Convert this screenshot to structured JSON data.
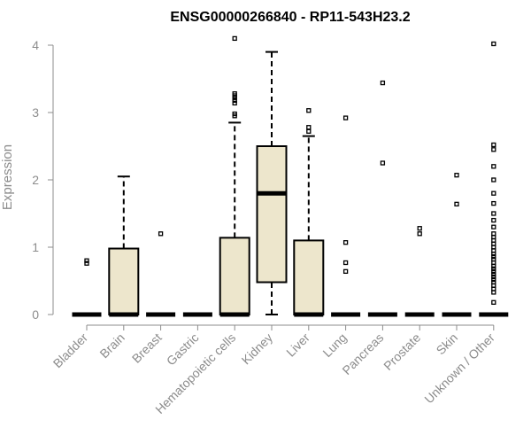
{
  "chart_data": {
    "type": "box",
    "title": "ENSG00000266840 - RP11-543H23.2",
    "xlabel": "",
    "ylabel": "Expression",
    "ylim": [
      0,
      4.2
    ],
    "y_ticks": [
      0,
      1,
      2,
      3,
      4
    ],
    "grid": false,
    "box_fill": "#ede6cc",
    "box_stroke": "#000000",
    "categories": [
      "Bladder",
      "Brain",
      "Breast",
      "Gastric",
      "Hematopoietic cells",
      "Kidney",
      "Liver",
      "Lung",
      "Pancreas",
      "Prostate",
      "Skin",
      "Unknown / Other"
    ],
    "boxes": [
      {
        "category": "Bladder",
        "whisker_low": 0,
        "q1": 0,
        "median": 0,
        "q3": 0,
        "whisker_high": 0,
        "outliers": [
          0.76,
          0.8
        ]
      },
      {
        "category": "Brain",
        "whisker_low": 0,
        "q1": 0,
        "median": 0,
        "q3": 0.98,
        "whisker_high": 2.05,
        "outliers": []
      },
      {
        "category": "Breast",
        "whisker_low": 0,
        "q1": 0,
        "median": 0,
        "q3": 0,
        "whisker_high": 0,
        "outliers": [
          1.2
        ]
      },
      {
        "category": "Gastric",
        "whisker_low": 0,
        "q1": 0,
        "median": 0,
        "q3": 0,
        "whisker_high": 0,
        "outliers": []
      },
      {
        "category": "Hematopoietic cells",
        "whisker_low": 0,
        "q1": 0,
        "median": 0,
        "q3": 1.14,
        "whisker_high": 2.85,
        "outliers": [
          2.95,
          2.98,
          3.14,
          3.18,
          3.22,
          3.25,
          3.28,
          4.1
        ]
      },
      {
        "category": "Kidney",
        "whisker_low": 0,
        "q1": 0.48,
        "median": 1.8,
        "q3": 2.5,
        "whisker_high": 3.9,
        "outliers": []
      },
      {
        "category": "Liver",
        "whisker_low": 0,
        "q1": 0,
        "median": 0,
        "q3": 1.1,
        "whisker_high": 2.65,
        "outliers": [
          2.72,
          2.78,
          3.03
        ]
      },
      {
        "category": "Lung",
        "whisker_low": 0,
        "q1": 0,
        "median": 0,
        "q3": 0,
        "whisker_high": 0,
        "outliers": [
          0.64,
          0.77,
          1.07,
          2.92
        ]
      },
      {
        "category": "Pancreas",
        "whisker_low": 0,
        "q1": 0,
        "median": 0,
        "q3": 0,
        "whisker_high": 0,
        "outliers": [
          2.25,
          3.44
        ]
      },
      {
        "category": "Prostate",
        "whisker_low": 0,
        "q1": 0,
        "median": 0,
        "q3": 0,
        "whisker_high": 0,
        "outliers": [
          1.2,
          1.28
        ]
      },
      {
        "category": "Skin",
        "whisker_low": 0,
        "q1": 0,
        "median": 0,
        "q3": 0,
        "whisker_high": 0,
        "outliers": [
          1.64,
          2.07
        ]
      },
      {
        "category": "Unknown / Other",
        "whisker_low": 0,
        "q1": 0,
        "median": 0,
        "q3": 0,
        "whisker_high": 0,
        "outliers": [
          0.18,
          0.33,
          0.38,
          0.43,
          0.48,
          0.52,
          0.56,
          0.6,
          0.64,
          0.68,
          0.72,
          0.77,
          0.82,
          0.86,
          0.9,
          0.95,
          1.0,
          1.05,
          1.1,
          1.15,
          1.2,
          1.3,
          1.4,
          1.5,
          1.65,
          1.8,
          2.0,
          2.2,
          2.45,
          2.52,
          4.02
        ]
      }
    ]
  }
}
